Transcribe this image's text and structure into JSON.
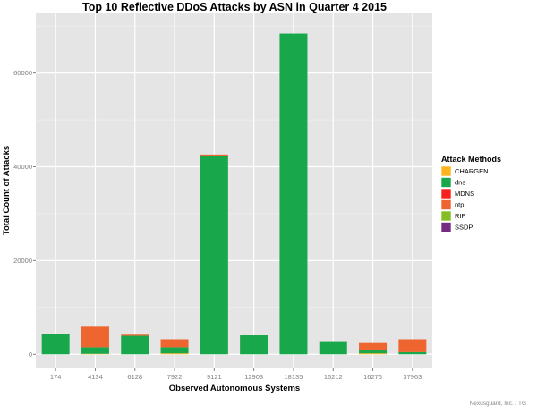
{
  "chart_data": {
    "type": "bar",
    "stacked": true,
    "title": "Top 10 Reflective DDoS Attacks by ASN in Quarter 4 2015",
    "xlabel": "Observed Autonomous Systems",
    "ylabel": "Total Count of Attacks",
    "categories": [
      "174",
      "4134",
      "6128",
      "7922",
      "9121",
      "12903",
      "18135",
      "16212",
      "16276",
      "37963"
    ],
    "yticks": [
      0,
      20000,
      40000,
      60000
    ],
    "ylim": [
      -3000,
      72700
    ],
    "grid": true,
    "legend": {
      "title": "Attack Methods",
      "position": "right"
    },
    "series": [
      {
        "name": "CHARGEN",
        "color": "#fbb41c",
        "values": [
          0,
          100,
          0,
          200,
          0,
          0,
          0,
          0,
          200,
          0
        ]
      },
      {
        "name": "dns",
        "color": "#18a74a",
        "values": [
          4400,
          1400,
          3950,
          1300,
          42300,
          4050,
          68400,
          2800,
          800,
          450
        ]
      },
      {
        "name": "MDNS",
        "color": "#f8201a",
        "values": [
          0,
          0,
          0,
          0,
          0,
          0,
          0,
          0,
          0,
          0
        ]
      },
      {
        "name": "ntp",
        "color": "#ee6530",
        "values": [
          0,
          4400,
          250,
          1700,
          300,
          0,
          0,
          0,
          1400,
          2750
        ]
      },
      {
        "name": "RIP",
        "color": "#86bd22",
        "values": [
          0,
          0,
          0,
          0,
          0,
          0,
          0,
          0,
          0,
          0
        ]
      },
      {
        "name": "SSDP",
        "color": "#762a83",
        "values": [
          0,
          0,
          0,
          0,
          0,
          0,
          0,
          0,
          0,
          0
        ]
      }
    ]
  },
  "footer": "Nexusguard, Inc. / TG"
}
